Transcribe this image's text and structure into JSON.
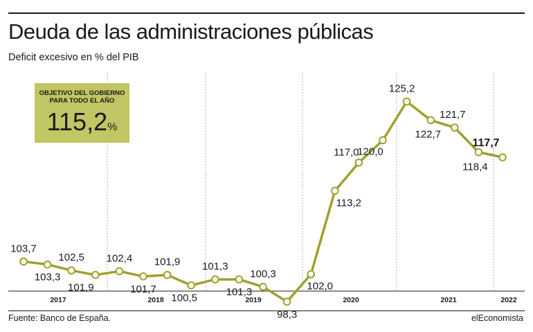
{
  "header": {
    "title": "Deuda de las administraciones públicas",
    "subtitle": "Deficit excesivo en % del PIB"
  },
  "target_box": {
    "label_line1": "OBJETIVO DEL GOBIERNO",
    "label_line2": "PARA TODO EL AÑO",
    "value": "115,2",
    "unit": "%"
  },
  "footer": {
    "source": "Fuente: Banco de España.",
    "brand": "elEconomista"
  },
  "colors": {
    "line": "#9ea12b",
    "box": "#c1c563",
    "text": "#1a1a1a"
  },
  "chart_data": {
    "type": "line",
    "title": "Deuda de las administraciones públicas",
    "subtitle": "Deficit excesivo en % del PIB",
    "ylim": [
      96,
      130
    ],
    "year_labels": [
      "2017",
      "2018",
      "2019",
      "2020",
      "2021",
      "2022"
    ],
    "series": [
      {
        "values": [
          103.7,
          103.3,
          102.5,
          101.9,
          102.4,
          101.7,
          101.9,
          100.5,
          101.3,
          101.3,
          100.3,
          98.3,
          102.0,
          113.2,
          117.0,
          120.0,
          125.2,
          122.7,
          121.7,
          118.4,
          117.7
        ],
        "labels": [
          "103,7",
          "103,3",
          "102,5",
          "101,9",
          "102,4",
          "101,7",
          "101,9",
          "100,5",
          "101,3",
          "101,3",
          "100,3",
          "98,3",
          "102,0",
          "113,2",
          "117,0",
          "120,0",
          "125,2",
          "122,7",
          "121,7",
          "118,4",
          "117,7"
        ]
      }
    ],
    "highlight_last": true
  }
}
